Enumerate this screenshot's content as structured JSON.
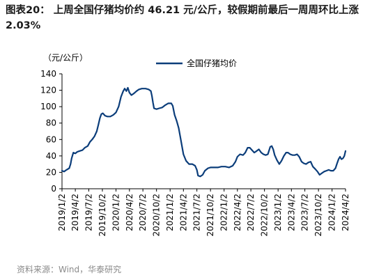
{
  "figure": {
    "title": "图表20：   上周全国仔猪均价约 46.21 元/公斤，较假期前最后一周周环比上涨 2.03%",
    "source": "资料来源：Wind，华泰研究"
  },
  "chart_data": {
    "type": "line",
    "title": "",
    "ylabel": "（元/公斤）",
    "xlabel": "",
    "ylim": [
      0,
      140
    ],
    "yticks": [
      0,
      20,
      40,
      60,
      80,
      100,
      120,
      140
    ],
    "xlim": [
      "2019-01-02",
      "2024-04-02"
    ],
    "xticks": [
      "2019/1/2",
      "2019/4/2",
      "2019/7/2",
      "2019/10/2",
      "2020/1/2",
      "2020/4/2",
      "2020/7/2",
      "2020/10/2",
      "2021/1/2",
      "2021/4/2",
      "2021/7/2",
      "2021/10/2",
      "2022/1/2",
      "2022/4/2",
      "2022/7/2",
      "2022/10/2",
      "2023/1/2",
      "2023/4/2",
      "2023/7/2",
      "2023/10/2",
      "2024/1/2",
      "2024/4/2"
    ],
    "legend": "top-center",
    "grid": false,
    "line_color": "#0b3d7a",
    "series": [
      {
        "name": "全国仔猪均价",
        "points": [
          [
            "2019-01-02",
            22
          ],
          [
            "2019-01-16",
            21
          ],
          [
            "2019-02-01",
            23
          ],
          [
            "2019-02-20",
            25
          ],
          [
            "2019-03-01",
            30
          ],
          [
            "2019-03-08",
            37
          ],
          [
            "2019-03-20",
            44
          ],
          [
            "2019-04-02",
            43
          ],
          [
            "2019-04-15",
            45
          ],
          [
            "2019-05-01",
            46
          ],
          [
            "2019-05-20",
            47
          ],
          [
            "2019-06-05",
            50
          ],
          [
            "2019-06-25",
            52
          ],
          [
            "2019-07-10",
            57
          ],
          [
            "2019-07-25",
            60
          ],
          [
            "2019-08-10",
            64
          ],
          [
            "2019-08-25",
            70
          ],
          [
            "2019-09-05",
            78
          ],
          [
            "2019-09-15",
            86
          ],
          [
            "2019-09-25",
            91
          ],
          [
            "2019-10-05",
            92
          ],
          [
            "2019-10-20",
            89
          ],
          [
            "2019-11-05",
            88
          ],
          [
            "2019-11-25",
            88
          ],
          [
            "2019-12-15",
            90
          ],
          [
            "2020-01-02",
            93
          ],
          [
            "2020-01-20",
            100
          ],
          [
            "2020-02-05",
            112
          ],
          [
            "2020-02-20",
            119
          ],
          [
            "2020-03-01",
            122
          ],
          [
            "2020-03-12",
            119
          ],
          [
            "2020-03-22",
            123
          ],
          [
            "2020-04-02",
            117
          ],
          [
            "2020-04-15",
            114
          ],
          [
            "2020-05-01",
            116
          ],
          [
            "2020-05-20",
            119
          ],
          [
            "2020-06-05",
            121
          ],
          [
            "2020-06-25",
            122
          ],
          [
            "2020-07-20",
            122
          ],
          [
            "2020-08-10",
            121
          ],
          [
            "2020-08-25",
            119
          ],
          [
            "2020-09-01",
            113
          ],
          [
            "2020-09-08",
            105
          ],
          [
            "2020-09-15",
            98
          ],
          [
            "2020-10-02",
            97
          ],
          [
            "2020-10-20",
            98
          ],
          [
            "2020-11-10",
            99
          ],
          [
            "2020-12-01",
            102
          ],
          [
            "2020-12-20",
            104
          ],
          [
            "2021-01-10",
            104
          ],
          [
            "2021-01-20",
            101
          ],
          [
            "2021-02-01",
            90
          ],
          [
            "2021-02-15",
            83
          ],
          [
            "2021-03-01",
            74
          ],
          [
            "2021-03-15",
            60
          ],
          [
            "2021-04-02",
            42
          ],
          [
            "2021-04-20",
            34
          ],
          [
            "2021-05-10",
            30
          ],
          [
            "2021-06-01",
            30
          ],
          [
            "2021-06-20",
            28
          ],
          [
            "2021-07-02",
            23
          ],
          [
            "2021-07-10",
            16
          ],
          [
            "2021-07-25",
            15
          ],
          [
            "2021-08-10",
            17
          ],
          [
            "2021-08-25",
            22
          ],
          [
            "2021-09-15",
            25
          ],
          [
            "2021-10-02",
            26
          ],
          [
            "2021-10-25",
            26
          ],
          [
            "2021-11-20",
            26
          ],
          [
            "2021-12-15",
            27
          ],
          [
            "2022-01-10",
            27
          ],
          [
            "2022-02-05",
            26
          ],
          [
            "2022-03-01",
            28
          ],
          [
            "2022-03-20",
            33
          ],
          [
            "2022-04-02",
            39
          ],
          [
            "2022-04-20",
            42
          ],
          [
            "2022-05-10",
            41
          ],
          [
            "2022-05-25",
            44
          ],
          [
            "2022-06-10",
            50
          ],
          [
            "2022-06-25",
            50
          ],
          [
            "2022-07-10",
            47
          ],
          [
            "2022-07-25",
            44
          ],
          [
            "2022-08-10",
            46
          ],
          [
            "2022-08-25",
            48
          ],
          [
            "2022-09-10",
            44
          ],
          [
            "2022-09-25",
            42
          ],
          [
            "2022-10-10",
            41
          ],
          [
            "2022-10-25",
            42
          ],
          [
            "2022-11-10",
            51
          ],
          [
            "2022-11-20",
            52
          ],
          [
            "2022-11-30",
            48
          ],
          [
            "2022-12-10",
            41
          ],
          [
            "2022-12-25",
            35
          ],
          [
            "2023-01-10",
            30
          ],
          [
            "2023-01-25",
            34
          ],
          [
            "2023-02-10",
            40
          ],
          [
            "2023-02-25",
            44
          ],
          [
            "2023-03-10",
            44
          ],
          [
            "2023-03-25",
            42
          ],
          [
            "2023-04-10",
            41
          ],
          [
            "2023-04-25",
            41
          ],
          [
            "2023-05-10",
            42
          ],
          [
            "2023-05-25",
            39
          ],
          [
            "2023-06-10",
            33
          ],
          [
            "2023-06-25",
            31
          ],
          [
            "2023-07-10",
            30
          ],
          [
            "2023-07-25",
            32
          ],
          [
            "2023-08-10",
            33
          ],
          [
            "2023-08-25",
            27
          ],
          [
            "2023-09-10",
            24
          ],
          [
            "2023-09-25",
            21
          ],
          [
            "2023-10-10",
            17
          ],
          [
            "2023-10-25",
            19
          ],
          [
            "2023-11-10",
            21
          ],
          [
            "2023-11-25",
            22
          ],
          [
            "2023-12-10",
            23
          ],
          [
            "2023-12-25",
            22
          ],
          [
            "2024-01-10",
            22
          ],
          [
            "2024-01-25",
            25
          ],
          [
            "2024-02-05",
            31
          ],
          [
            "2024-02-15",
            36
          ],
          [
            "2024-02-25",
            39
          ],
          [
            "2024-03-05",
            36
          ],
          [
            "2024-03-15",
            37
          ],
          [
            "2024-03-25",
            40
          ],
          [
            "2024-04-02",
            46
          ]
        ]
      }
    ]
  }
}
